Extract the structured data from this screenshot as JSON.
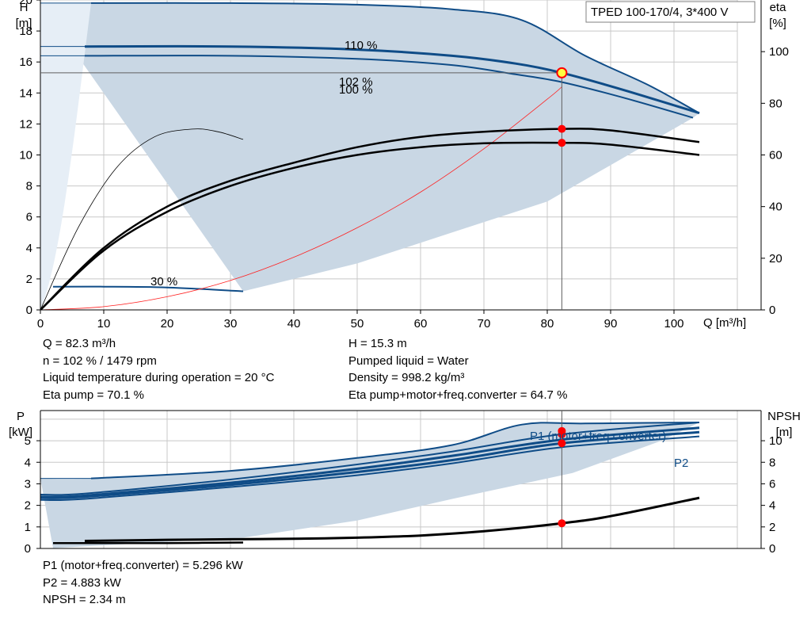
{
  "colors": {
    "envelope": "#c9d7e4",
    "envelope_light": "#e6eef6",
    "curve_blue": "#0f4c87",
    "curve_black": "#000000",
    "system_red": "#ff2020",
    "marker_red": "#ff0000",
    "op_point_fill": "#ffff40",
    "grid": "#c8c8c8"
  },
  "head_chart": {
    "label_box": "TPED 100-170/4, 3*400 V",
    "y_title_left": "H",
    "y_unit_left": "[m]",
    "y_title_right": "eta",
    "y_unit_right": "[%]",
    "x_title": "Q [m³/h]",
    "x_ticks": [
      "0",
      "10",
      "20",
      "30",
      "40",
      "50",
      "60",
      "70",
      "80",
      "90",
      "100"
    ],
    "y_ticks_left": [
      "0",
      "2",
      "4",
      "6",
      "8",
      "10",
      "12",
      "14",
      "16",
      "18",
      "20"
    ],
    "y_ticks_right": [
      "0",
      "20",
      "40",
      "60",
      "80",
      "100"
    ],
    "curve_labels": [
      "110 %",
      "102 %",
      "100 %",
      "30 %"
    ]
  },
  "info_top": {
    "col1": [
      "Q = 82.3 m³/h",
      "n = 102 % / 1479 rpm",
      "Liquid temperature during operation = 20 °C",
      "Eta pump = 70.1 %"
    ],
    "col2": [
      "H = 15.3 m",
      "Pumped liquid = Water",
      "Density = 998.2 kg/m³",
      "Eta pump+motor+freq.converter = 64.7 %"
    ]
  },
  "power_chart": {
    "y_title_left": "P",
    "y_unit_left": "[kW]",
    "y_title_right": "NPSH",
    "y_unit_right": "[m]",
    "y_ticks_left": [
      "0",
      "1",
      "2",
      "3",
      "4",
      "5"
    ],
    "y_ticks_right": [
      "0",
      "2",
      "4",
      "6",
      "8",
      "10"
    ],
    "curve_labels": [
      "P1 (motor+freq.converter)",
      "P2"
    ]
  },
  "info_bottom": [
    "P1 (motor+freq.converter) = 5.296 kW",
    "P2 = 4.883 kW",
    "NPSH = 2.34 m"
  ],
  "chart_data": [
    {
      "type": "line",
      "title": "TPED 100-170/4, 3*400 V",
      "xlabel": "Q [m³/h]",
      "ylabel": "H [m]",
      "ylabel_right": "eta [%]",
      "xlim": [
        0,
        110
      ],
      "ylim": [
        0,
        20
      ],
      "ylim_right": [
        0,
        120
      ],
      "grid": true,
      "series": [
        {
          "name": "110 %",
          "axis": "H",
          "x": [
            8,
            30,
            50,
            65,
            76,
            86,
            96,
            104
          ],
          "y": [
            19.8,
            19.8,
            19.7,
            19.4,
            18.7,
            16.4,
            14.5,
            12.7
          ]
        },
        {
          "name": "102 %",
          "axis": "H",
          "x": [
            7,
            30,
            50,
            65,
            75,
            82.3,
            92,
            104
          ],
          "y": [
            17.0,
            17.0,
            16.8,
            16.4,
            15.9,
            15.3,
            14.2,
            12.7
          ]
        },
        {
          "name": "100 %",
          "axis": "H",
          "x": [
            7,
            30,
            50,
            65,
            75,
            82.3,
            92,
            103
          ],
          "y": [
            16.4,
            16.4,
            16.2,
            15.8,
            15.2,
            14.7,
            13.7,
            12.4
          ]
        },
        {
          "name": "30 %",
          "axis": "H",
          "x": [
            2,
            10,
            20,
            32
          ],
          "y": [
            1.5,
            1.5,
            1.45,
            1.2
          ]
        },
        {
          "axis": "H",
          "x": [
            0,
            10,
            20,
            30,
            40,
            50,
            60,
            70,
            80,
            82.3
          ],
          "y": [
            0,
            0.21,
            0.85,
            1.9,
            3.4,
            5.3,
            7.6,
            10.4,
            13.6,
            14.4
          ]
        },
        {
          "axis": "eta",
          "x": [
            0,
            10,
            20,
            30,
            40,
            50,
            60,
            70,
            82.3,
            90,
            104
          ],
          "y": [
            0,
            24,
            40,
            50,
            57,
            63,
            67,
            69,
            70.1,
            69.5,
            65
          ]
        },
        {
          "axis": "eta",
          "x": [
            0,
            10,
            20,
            30,
            40,
            50,
            60,
            70,
            82.3,
            90,
            104
          ],
          "y": [
            0,
            23,
            38,
            48,
            55,
            60,
            63,
            64.5,
            64.7,
            64,
            60
          ]
        },
        {
          "axis": "eta",
          "x": [
            0,
            6,
            12,
            18,
            24,
            28,
            32
          ],
          "y": [
            0,
            32,
            55,
            67,
            70,
            69,
            66
          ]
        }
      ],
      "envelope": {
        "x_upper": [
          0,
          8,
          30,
          50,
          65,
          76,
          86,
          96,
          104
        ],
        "y_upper": [
          19.8,
          19.8,
          19.8,
          19.7,
          19.4,
          18.7,
          16.4,
          14.5,
          12.7
        ],
        "x_lower": [
          103,
          80,
          65,
          50,
          32
        ],
        "y_lower": [
          12.4,
          7.0,
          5.0,
          3.0,
          1.2
        ]
      },
      "operating_point": {
        "Q": 82.3,
        "H": 15.3,
        "eta_pump": 70.1,
        "eta_total": 64.7
      }
    },
    {
      "type": "line",
      "ylabel": "P [kW]",
      "ylabel_right": "NPSH [m]",
      "xlim": [
        0,
        110
      ],
      "ylim": [
        0,
        6.4
      ],
      "ylim_right": [
        0,
        12.8
      ],
      "grid": true,
      "series": [
        {
          "name": "P1 (motor+freq.converter)",
          "axis": "P",
          "x": [
            8,
            30,
            50,
            65,
            76,
            86,
            104
          ],
          "y": [
            3.25,
            3.6,
            4.2,
            4.8,
            5.75,
            5.8,
            5.85
          ]
        },
        {
          "axis": "P",
          "x": [
            0,
            7,
            30,
            50,
            65,
            82.3,
            104
          ],
          "y": [
            2.5,
            2.55,
            3.2,
            3.9,
            4.5,
            5.3,
            5.85
          ]
        },
        {
          "axis": "P",
          "x": [
            0,
            7,
            30,
            50,
            65,
            82.3,
            104
          ],
          "y": [
            2.4,
            2.45,
            3.05,
            3.7,
            4.3,
            5.05,
            5.6
          ]
        },
        {
          "name": "P2",
          "axis": "P",
          "x": [
            0,
            7,
            30,
            50,
            65,
            82.3,
            104
          ],
          "y": [
            2.35,
            2.4,
            2.95,
            3.55,
            4.1,
            4.88,
            5.4
          ]
        },
        {
          "axis": "P",
          "x": [
            0,
            7,
            30,
            50,
            65,
            82.3,
            104
          ],
          "y": [
            2.25,
            2.3,
            2.85,
            3.4,
            3.95,
            4.7,
            5.2
          ]
        },
        {
          "axis": "NPSH",
          "x": [
            7,
            20,
            30,
            40,
            50,
            60,
            70,
            82.3,
            90,
            104
          ],
          "y": [
            0.7,
            0.8,
            0.85,
            0.9,
            1.0,
            1.2,
            1.6,
            2.34,
            3.0,
            4.7
          ]
        },
        {
          "axis": "NPSH",
          "x": [
            2,
            10,
            20,
            32
          ],
          "y": [
            0.5,
            0.5,
            0.5,
            0.55
          ]
        }
      ],
      "envelope": {
        "x_upper": [
          0,
          8,
          30,
          50,
          65,
          76,
          86,
          104
        ],
        "y_upper": [
          3.25,
          3.25,
          3.6,
          4.2,
          4.8,
          5.75,
          5.8,
          5.85
        ],
        "x_lower": [
          104,
          98,
          84,
          65,
          50,
          32,
          2
        ],
        "y_lower": [
          5.85,
          5.0,
          3.5,
          2.3,
          1.3,
          0.5,
          0.02
        ]
      },
      "operating_point": {
        "Q": 82.3,
        "P1": 5.296,
        "P2": 4.883,
        "NPSH": 2.34
      }
    }
  ]
}
